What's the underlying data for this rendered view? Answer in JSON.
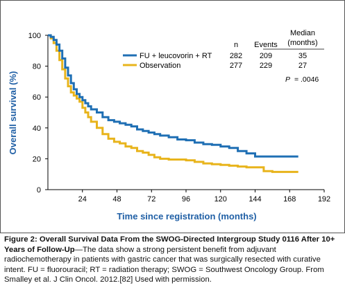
{
  "chart_data": {
    "type": "line",
    "xlabel": "Time since registration (months)",
    "ylabel": "Overall survival (%)",
    "xlim": [
      0,
      192
    ],
    "ylim": [
      0,
      100
    ],
    "x_ticks": [
      24,
      48,
      72,
      96,
      120,
      144,
      168,
      192
    ],
    "y_ticks": [
      0,
      20,
      40,
      60,
      80,
      100
    ],
    "grid": false,
    "legend": {
      "placement": "top-right",
      "headers": {
        "n": "n",
        "events": "Events",
        "median": "Median",
        "median_unit": "(months)"
      }
    },
    "series": [
      {
        "name": "FU + leucovorin + RT",
        "color": "#1f6fb4",
        "n": "282",
        "events": "209",
        "median": "35",
        "x": [
          0,
          2,
          4,
          6,
          8,
          10,
          12,
          14,
          16,
          18,
          20,
          22,
          24,
          26,
          28,
          30,
          34,
          38,
          42,
          46,
          50,
          54,
          58,
          62,
          66,
          70,
          74,
          78,
          84,
          90,
          96,
          102,
          108,
          114,
          120,
          126,
          132,
          138,
          144,
          150,
          156,
          162,
          168,
          174
        ],
        "y": [
          100,
          99,
          97,
          94,
          90,
          85,
          79,
          74,
          69,
          65,
          62,
          60,
          58,
          56,
          54,
          52,
          50,
          47,
          45,
          44,
          43,
          42,
          41,
          39,
          38,
          37,
          36,
          35,
          34,
          32.5,
          32,
          30.5,
          29.5,
          29,
          28,
          27,
          25,
          23.5,
          21.5,
          21.5,
          21.5,
          21.5,
          21.5,
          21.5
        ]
      },
      {
        "name": "Observation",
        "color": "#e8b41c",
        "n": "277",
        "events": "229",
        "median": "27",
        "x": [
          0,
          2,
          4,
          6,
          8,
          10,
          12,
          14,
          16,
          18,
          20,
          22,
          24,
          26,
          28,
          30,
          34,
          38,
          42,
          46,
          50,
          54,
          58,
          62,
          66,
          70,
          74,
          78,
          84,
          90,
          96,
          102,
          108,
          114,
          120,
          126,
          132,
          138,
          144,
          150,
          156,
          162,
          168,
          174
        ],
        "y": [
          100,
          98,
          95,
          90,
          84,
          78,
          72,
          67,
          63,
          61,
          59,
          57,
          53,
          50,
          47,
          44,
          40,
          36,
          33,
          31,
          30,
          28,
          27,
          25,
          24,
          22.5,
          21,
          20,
          19.5,
          19.5,
          19,
          18,
          17,
          16.5,
          16,
          15.5,
          15,
          14.5,
          14.5,
          12,
          11.5,
          11.5,
          11.5,
          11.5
        ]
      }
    ],
    "annotations": {
      "p_value": "= .0046",
      "p_label": "P"
    }
  },
  "caption": {
    "title": "Figure 2: Overall Survival Data From the SWOG-Directed Intergroup Study 0116 After 10+ Years of Follow-Up",
    "body": "—The data show a strong persistent benefit from adjuvant radiochemotherapy in patients with gastric cancer that was surgically resected with curative intent. FU = fluorouracil; RT = radiation therapy; SWOG = Southwest Oncology Group. From Smalley et al. J Clin Oncol. 2012.[82] Used with permission."
  }
}
